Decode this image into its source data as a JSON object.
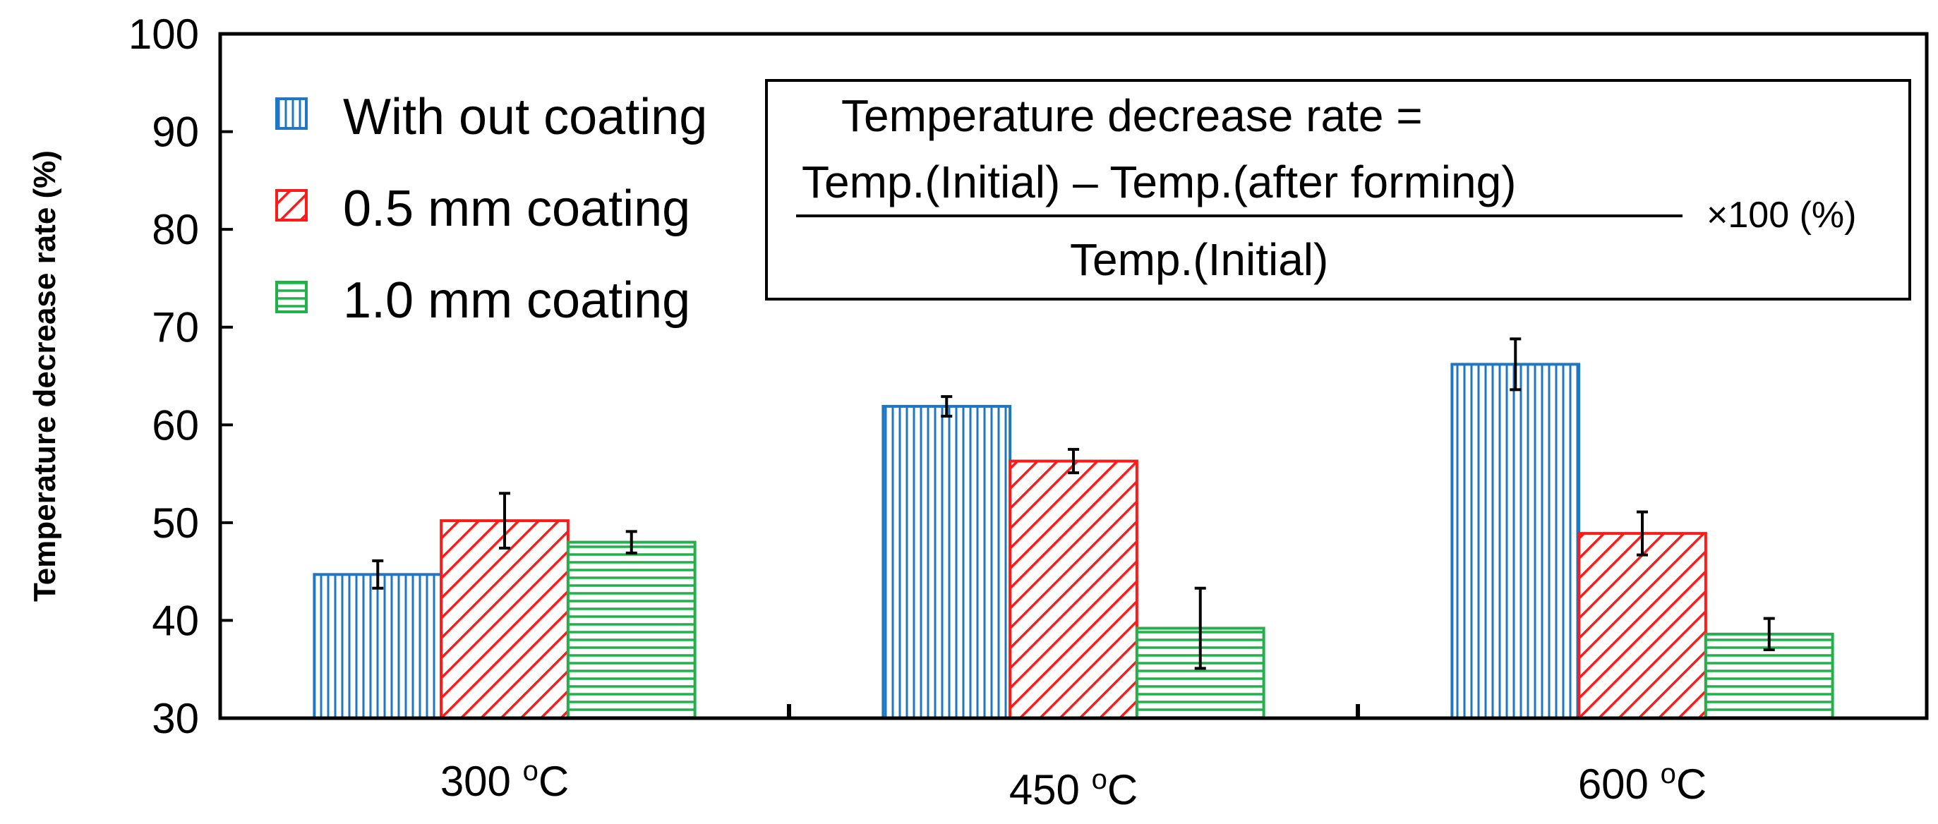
{
  "chart_data": {
    "type": "bar",
    "categories": [
      "300",
      "450",
      "600"
    ],
    "category_unit_sup": "o",
    "category_unit": "C",
    "ylabel": "Temperature decrease rate (%)",
    "ylim": [
      30,
      100
    ],
    "yticks": [
      30,
      40,
      50,
      60,
      70,
      80,
      90,
      100
    ],
    "series": [
      {
        "name": "With out coating",
        "values": [
          44.7,
          61.9,
          66.2
        ],
        "errors": [
          1.4,
          1.0,
          2.6
        ],
        "color": "#1f77c4",
        "pattern": "vertical"
      },
      {
        "name": "0.5 mm coating",
        "values": [
          50.2,
          56.3,
          48.9
        ],
        "errors": [
          2.8,
          1.2,
          2.2
        ],
        "color": "#ff1a1a",
        "pattern": "diagonal"
      },
      {
        "name": "1.0 mm coating",
        "values": [
          48.0,
          39.2,
          38.6
        ],
        "errors": [
          1.1,
          4.1,
          1.6
        ],
        "color": "#22b04a",
        "pattern": "horizontal"
      }
    ],
    "legend_position": "top-left",
    "annotation": {
      "line1": "Temperature decrease rate =",
      "numerator": "Temp.(Initial) – Temp.(after forming)",
      "denominator": "Temp.(Initial)",
      "multiplier": "×100 (%)"
    }
  }
}
